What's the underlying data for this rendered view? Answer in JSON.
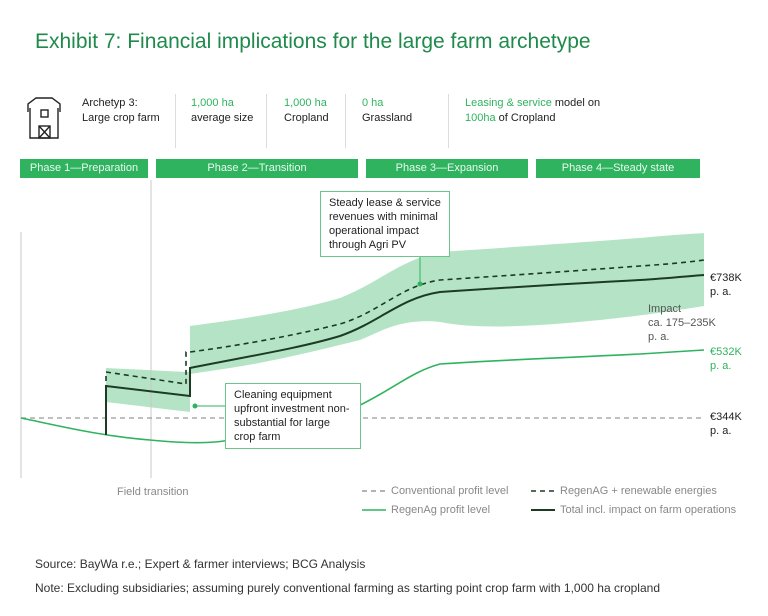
{
  "title": "Exhibit 7: Financial implications for the large farm archetype",
  "info": {
    "archetype_l1": "Archetyp 3:",
    "archetype_l2": "Large crop farm",
    "size_value": "1,000 ha",
    "size_label": "average size",
    "cropland_value": "1,000 ha",
    "cropland_label": "Cropland",
    "grassland_value": "0 ha",
    "grassland_label": "Grassland",
    "model_l1a": "Leasing & service",
    "model_l1b": " model on",
    "model_l2a": "100ha",
    "model_l2b": " of Cropland"
  },
  "phases": [
    "Phase 1—Preparation",
    "Phase 2—Transition",
    "Phase 3—Expansion",
    "Phase 4—Steady state"
  ],
  "callouts": {
    "top": {
      "p1": "Steady lease & service revenues",
      "p2": " with ",
      "p3": "minimal operational impact",
      "p4": " through Agri PV"
    },
    "bottom": {
      "p1": "Cleaning equipment ",
      "p2": "upfront investment non-substantial",
      "p3": " for large crop farm"
    }
  },
  "labels": {
    "total_value": "€738K",
    "total_unit": "p. a.",
    "impact_l1": "Impact",
    "impact_l2": "ca. 175–235K",
    "impact_l3": "p. a.",
    "regen_value": "€532K",
    "regen_unit": "p. a.",
    "conv_value": "€344K",
    "conv_unit": "p. a.",
    "field_transition": "Field transition"
  },
  "legend": {
    "conventional": "Conventional profit level",
    "regen_renew": "RegenAG + renewable energies",
    "regen": "RegenAg profit level",
    "total": "Total incl. impact on farm operations"
  },
  "footer": {
    "source": "Source: BayWa r.e.; Expert & farmer interviews; BCG Analysis",
    "note": "Note: Excluding subsidiaries; assuming purely conventional farming as starting point crop farm with 1,000 ha cropland"
  },
  "colors": {
    "accent": "#2fb35f",
    "dark_line": "#1d3b24",
    "band": "#a7dfbb"
  },
  "chart_data": {
    "type": "line",
    "x_label": "",
    "y_label": "",
    "x_markers": [
      "Field transition"
    ],
    "series": [
      {
        "name": "Conventional profit level",
        "style": "dashed gray",
        "end_value_k_eur": 344
      },
      {
        "name": "RegenAg profit level",
        "style": "solid green",
        "end_value_k_eur": 532
      },
      {
        "name": "RegenAG + renewable energies",
        "style": "dashed dark",
        "end_value_k_eur": null
      },
      {
        "name": "Total incl. impact on farm operations",
        "style": "solid dark",
        "end_value_k_eur": 738
      }
    ],
    "impact_range_k_eur": [
      175,
      235
    ]
  }
}
